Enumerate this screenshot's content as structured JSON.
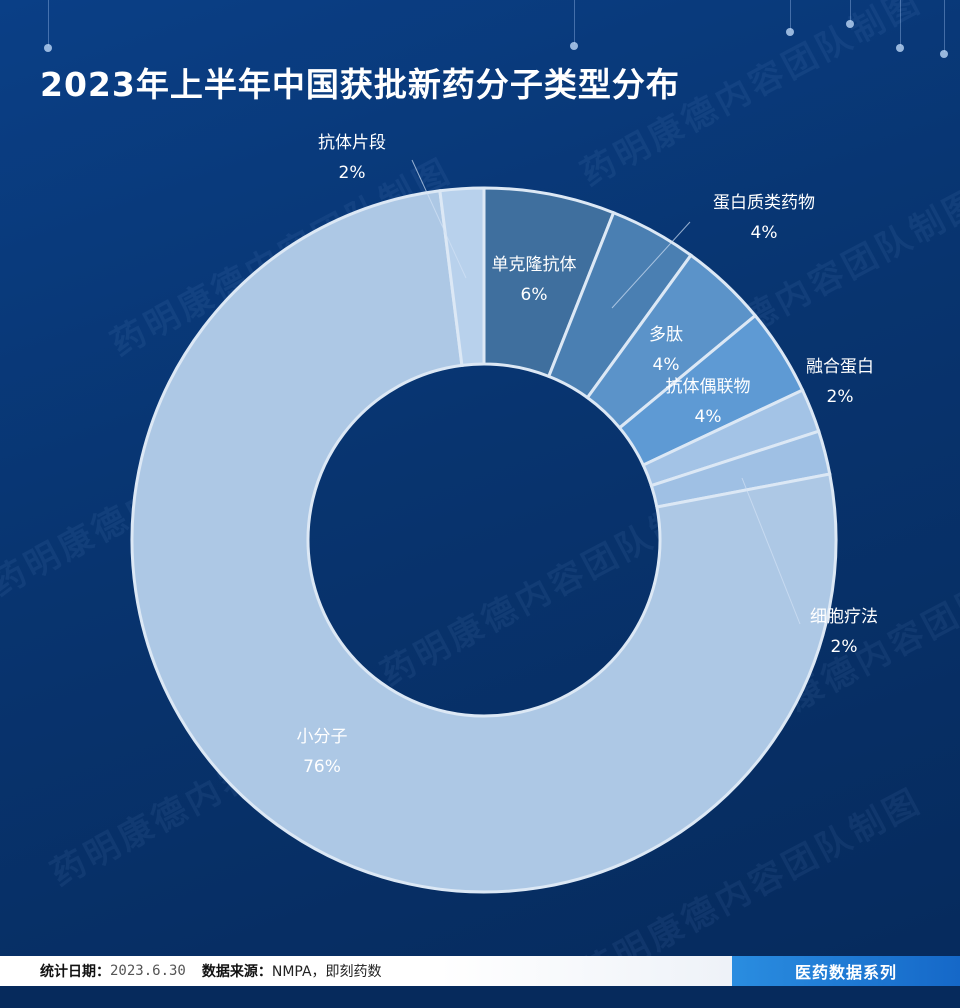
{
  "title": "2023年上半年中国获批新药分子类型分布",
  "watermark_text": "药明康德内容团队制图",
  "chart_data": {
    "type": "donut",
    "title": "2023年上半年中国获批新药分子类型分布",
    "slices": [
      {
        "label": "单克隆抗体",
        "value": 6,
        "display": "6%",
        "color": "#3f6f9e"
      },
      {
        "label": "蛋白质类药物",
        "value": 4,
        "display": "4%",
        "color": "#4a7fb2"
      },
      {
        "label": "多肽",
        "value": 4,
        "display": "4%",
        "color": "#5b93c9"
      },
      {
        "label": "抗体偶联物",
        "value": 4,
        "display": "4%",
        "color": "#5e9ad4"
      },
      {
        "label": "融合蛋白",
        "value": 2,
        "display": "2%",
        "color": "#a3c3e6"
      },
      {
        "label": "细胞疗法",
        "value": 2,
        "display": "2%",
        "color": "#9fc0e4"
      },
      {
        "label": "小分子",
        "value": 76,
        "display": "76%",
        "color": "#adc8e5"
      },
      {
        "label": "抗体片段",
        "value": 2,
        "display": "2%",
        "color": "#b8d1ec"
      }
    ]
  },
  "footer": {
    "date_label": "统计日期：",
    "date_value": "2023.6.30",
    "source_label": "数据来源：",
    "source_value": "NMPA，即刻药数",
    "series_label": "医药数据系列"
  },
  "colors": {
    "background": "#08346f",
    "label_dark": "#ffffff",
    "slice_border": "#dce8f5"
  }
}
